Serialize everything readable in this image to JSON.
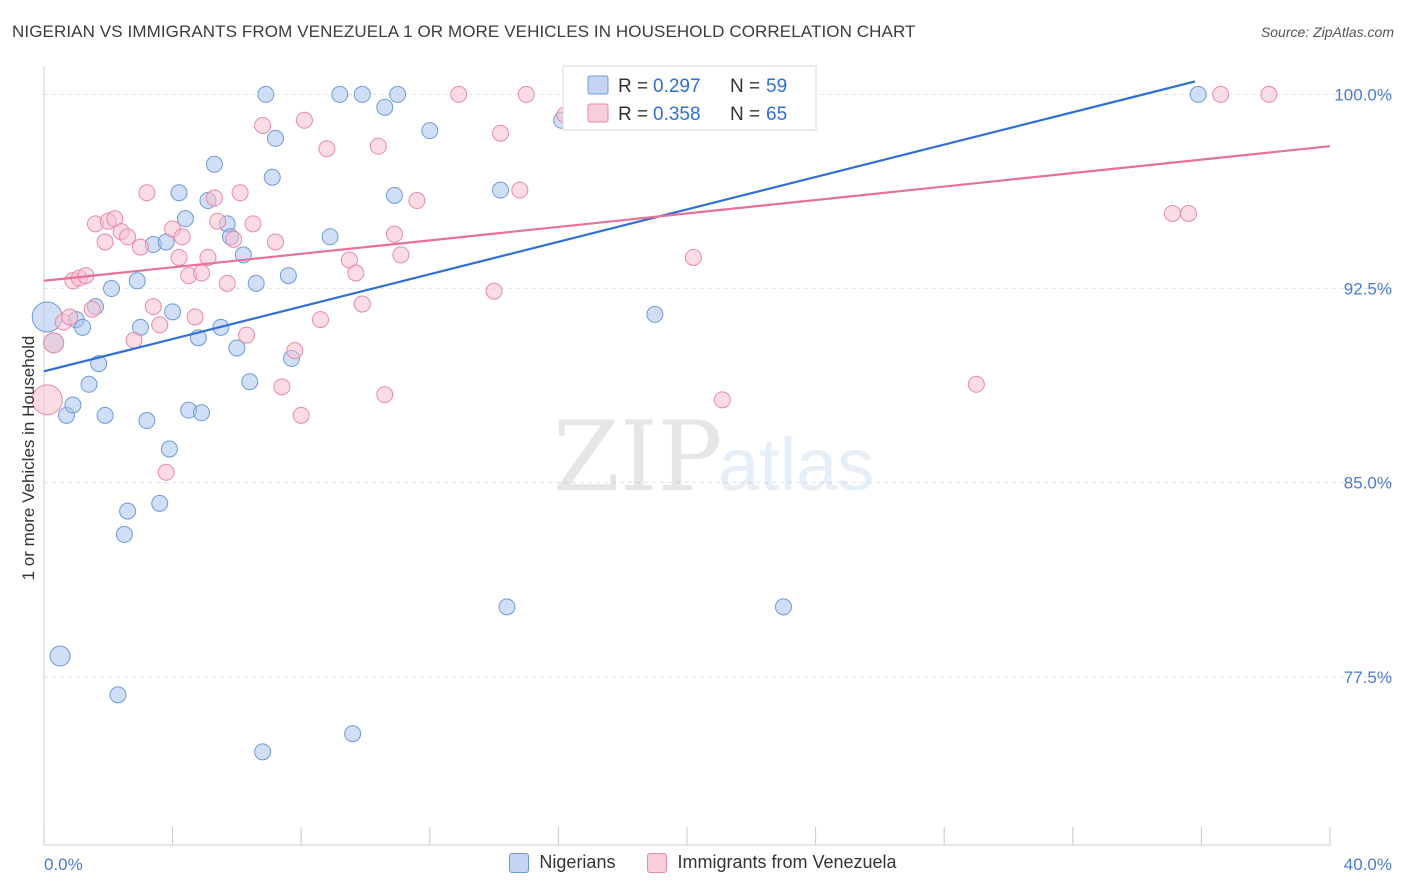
{
  "header": {
    "title": "NIGERIAN VS IMMIGRANTS FROM VENEZUELA 1 OR MORE VEHICLES IN HOUSEHOLD CORRELATION CHART",
    "source": "Source: ZipAtlas.com"
  },
  "watermark": {
    "zip": "ZIP",
    "atlas": "atlas"
  },
  "legend": {
    "series1": {
      "r_label": "R =",
      "r_value": "0.297",
      "n_label": "N =",
      "n_value": "59"
    },
    "series2": {
      "r_label": "R =",
      "r_value": "0.358",
      "n_label": "N =",
      "n_value": "65"
    }
  },
  "bottom_legend": {
    "series1": "Nigerians",
    "series2": "Immigrants from Venezuela"
  },
  "colors": {
    "blue_fill": "#aac4ee",
    "blue_stroke": "#6e9ad8",
    "blue_line": "#2f6fd6",
    "pink_fill": "#f7bfd0",
    "pink_stroke": "#e98aa8",
    "pink_line": "#e8709a",
    "tick_color": "#4a7bd0",
    "grid": "#e3e3e3"
  },
  "chart_data": {
    "type": "scatter",
    "title": "NIGERIAN VS IMMIGRANTS FROM VENEZUELA 1 OR MORE VEHICLES IN HOUSEHOLD CORRELATION CHART",
    "xlabel": "",
    "ylabel": "1 or more Vehicles in Household",
    "xlim": [
      0,
      40
    ],
    "ylim": [
      71.0,
      100.75
    ],
    "x_tick_labels": [
      "0.0%",
      "40.0%"
    ],
    "y_ticks": [
      100.0,
      92.5,
      85.0,
      77.5
    ],
    "y_tick_labels": [
      "100.0%",
      "92.5%",
      "85.0%",
      "77.5%"
    ],
    "grid": true,
    "series": [
      {
        "name": "Nigerians",
        "r": 0.297,
        "n": 59,
        "trend": {
          "x": [
            0,
            35.8
          ],
          "y": [
            89.3,
            100.5
          ]
        },
        "points": [
          {
            "x": 0.1,
            "y": 91.4,
            "s": 2
          },
          {
            "x": 0.3,
            "y": 90.4,
            "s": 1
          },
          {
            "x": 0.5,
            "y": 78.3,
            "s": 1
          },
          {
            "x": 0.7,
            "y": 87.6,
            "s": 0
          },
          {
            "x": 0.9,
            "y": 88.0,
            "s": 0
          },
          {
            "x": 1.0,
            "y": 91.3,
            "s": 0
          },
          {
            "x": 1.2,
            "y": 91.0,
            "s": 0
          },
          {
            "x": 1.4,
            "y": 88.8,
            "s": 0
          },
          {
            "x": 1.6,
            "y": 91.8,
            "s": 0
          },
          {
            "x": 1.7,
            "y": 89.6,
            "s": 0
          },
          {
            "x": 1.9,
            "y": 87.6,
            "s": 0
          },
          {
            "x": 2.1,
            "y": 92.5,
            "s": 0
          },
          {
            "x": 2.3,
            "y": 76.8,
            "s": 0
          },
          {
            "x": 2.5,
            "y": 83.0,
            "s": 0
          },
          {
            "x": 2.6,
            "y": 83.9,
            "s": 0
          },
          {
            "x": 2.9,
            "y": 92.8,
            "s": 0
          },
          {
            "x": 3.0,
            "y": 91.0,
            "s": 0
          },
          {
            "x": 3.2,
            "y": 87.4,
            "s": 0
          },
          {
            "x": 3.4,
            "y": 94.2,
            "s": 0
          },
          {
            "x": 3.6,
            "y": 84.2,
            "s": 0
          },
          {
            "x": 3.8,
            "y": 94.3,
            "s": 0
          },
          {
            "x": 3.9,
            "y": 86.3,
            "s": 0
          },
          {
            "x": 4.0,
            "y": 91.6,
            "s": 0
          },
          {
            "x": 4.2,
            "y": 96.2,
            "s": 0
          },
          {
            "x": 4.4,
            "y": 95.2,
            "s": 0
          },
          {
            "x": 4.5,
            "y": 87.8,
            "s": 0
          },
          {
            "x": 4.8,
            "y": 90.6,
            "s": 0
          },
          {
            "x": 4.9,
            "y": 87.7,
            "s": 0
          },
          {
            "x": 5.1,
            "y": 95.9,
            "s": 0
          },
          {
            "x": 5.3,
            "y": 97.3,
            "s": 0
          },
          {
            "x": 5.5,
            "y": 91.0,
            "s": 0
          },
          {
            "x": 5.7,
            "y": 95.0,
            "s": 0
          },
          {
            "x": 5.8,
            "y": 94.5,
            "s": 0
          },
          {
            "x": 6.0,
            "y": 90.2,
            "s": 0
          },
          {
            "x": 6.2,
            "y": 93.8,
            "s": 0
          },
          {
            "x": 6.4,
            "y": 88.9,
            "s": 0
          },
          {
            "x": 6.6,
            "y": 92.7,
            "s": 0
          },
          {
            "x": 6.8,
            "y": 74.6,
            "s": 0
          },
          {
            "x": 6.9,
            "y": 100.0,
            "s": 0
          },
          {
            "x": 7.1,
            "y": 96.8,
            "s": 0
          },
          {
            "x": 7.2,
            "y": 98.3,
            "s": 0
          },
          {
            "x": 7.6,
            "y": 93.0,
            "s": 0
          },
          {
            "x": 7.7,
            "y": 89.8,
            "s": 0
          },
          {
            "x": 8.9,
            "y": 94.5,
            "s": 0
          },
          {
            "x": 9.2,
            "y": 100.0,
            "s": 0
          },
          {
            "x": 9.6,
            "y": 75.3,
            "s": 0
          },
          {
            "x": 9.9,
            "y": 100.0,
            "s": 0
          },
          {
            "x": 10.6,
            "y": 99.5,
            "s": 0
          },
          {
            "x": 10.9,
            "y": 96.1,
            "s": 0
          },
          {
            "x": 11.0,
            "y": 100.0,
            "s": 0
          },
          {
            "x": 12.0,
            "y": 98.6,
            "s": 0
          },
          {
            "x": 14.2,
            "y": 96.3,
            "s": 0
          },
          {
            "x": 14.4,
            "y": 80.2,
            "s": 0
          },
          {
            "x": 16.1,
            "y": 99.0,
            "s": 0
          },
          {
            "x": 16.7,
            "y": 100.0,
            "s": 0
          },
          {
            "x": 18.6,
            "y": 100.0,
            "s": 0
          },
          {
            "x": 19.0,
            "y": 91.5,
            "s": 0
          },
          {
            "x": 23.0,
            "y": 80.2,
            "s": 0
          },
          {
            "x": 35.9,
            "y": 100.0,
            "s": 0
          }
        ]
      },
      {
        "name": "Immigrants from Venezuela",
        "r": 0.358,
        "n": 65,
        "trend": {
          "x": [
            0,
            40
          ],
          "y": [
            92.8,
            98.0
          ]
        },
        "points": [
          {
            "x": 0.1,
            "y": 88.2,
            "s": 2
          },
          {
            "x": 0.3,
            "y": 90.4,
            "s": 1
          },
          {
            "x": 0.6,
            "y": 91.2,
            "s": 0
          },
          {
            "x": 0.8,
            "y": 91.4,
            "s": 0
          },
          {
            "x": 0.9,
            "y": 92.8,
            "s": 0
          },
          {
            "x": 1.1,
            "y": 92.9,
            "s": 0
          },
          {
            "x": 1.3,
            "y": 93.0,
            "s": 0
          },
          {
            "x": 1.5,
            "y": 91.7,
            "s": 0
          },
          {
            "x": 1.6,
            "y": 95.0,
            "s": 0
          },
          {
            "x": 1.9,
            "y": 94.3,
            "s": 0
          },
          {
            "x": 2.0,
            "y": 95.1,
            "s": 0
          },
          {
            "x": 2.2,
            "y": 95.2,
            "s": 0
          },
          {
            "x": 2.4,
            "y": 94.7,
            "s": 0
          },
          {
            "x": 2.6,
            "y": 94.5,
            "s": 0
          },
          {
            "x": 2.8,
            "y": 90.5,
            "s": 0
          },
          {
            "x": 3.0,
            "y": 94.1,
            "s": 0
          },
          {
            "x": 3.2,
            "y": 96.2,
            "s": 0
          },
          {
            "x": 3.4,
            "y": 91.8,
            "s": 0
          },
          {
            "x": 3.6,
            "y": 91.1,
            "s": 0
          },
          {
            "x": 3.8,
            "y": 85.4,
            "s": 0
          },
          {
            "x": 4.0,
            "y": 94.8,
            "s": 0
          },
          {
            "x": 4.2,
            "y": 93.7,
            "s": 0
          },
          {
            "x": 4.3,
            "y": 94.5,
            "s": 0
          },
          {
            "x": 4.5,
            "y": 93.0,
            "s": 0
          },
          {
            "x": 4.7,
            "y": 91.4,
            "s": 0
          },
          {
            "x": 4.9,
            "y": 93.1,
            "s": 0
          },
          {
            "x": 5.1,
            "y": 93.7,
            "s": 0
          },
          {
            "x": 5.3,
            "y": 96.0,
            "s": 0
          },
          {
            "x": 5.4,
            "y": 95.1,
            "s": 0
          },
          {
            "x": 5.7,
            "y": 92.7,
            "s": 0
          },
          {
            "x": 5.9,
            "y": 94.4,
            "s": 0
          },
          {
            "x": 6.1,
            "y": 96.2,
            "s": 0
          },
          {
            "x": 6.3,
            "y": 90.7,
            "s": 0
          },
          {
            "x": 6.5,
            "y": 95.0,
            "s": 0
          },
          {
            "x": 6.8,
            "y": 98.8,
            "s": 0
          },
          {
            "x": 7.2,
            "y": 94.3,
            "s": 0
          },
          {
            "x": 7.4,
            "y": 88.7,
            "s": 0
          },
          {
            "x": 7.8,
            "y": 90.1,
            "s": 0
          },
          {
            "x": 8.0,
            "y": 87.6,
            "s": 0
          },
          {
            "x": 8.1,
            "y": 99.0,
            "s": 0
          },
          {
            "x": 8.6,
            "y": 91.3,
            "s": 0
          },
          {
            "x": 8.8,
            "y": 97.9,
            "s": 0
          },
          {
            "x": 9.5,
            "y": 93.6,
            "s": 0
          },
          {
            "x": 9.7,
            "y": 93.1,
            "s": 0
          },
          {
            "x": 9.9,
            "y": 91.9,
            "s": 0
          },
          {
            "x": 10.4,
            "y": 98.0,
            "s": 0
          },
          {
            "x": 10.6,
            "y": 88.4,
            "s": 0
          },
          {
            "x": 10.9,
            "y": 94.6,
            "s": 0
          },
          {
            "x": 11.1,
            "y": 93.8,
            "s": 0
          },
          {
            "x": 11.6,
            "y": 95.9,
            "s": 0
          },
          {
            "x": 12.9,
            "y": 100.0,
            "s": 0
          },
          {
            "x": 14.0,
            "y": 92.4,
            "s": 0
          },
          {
            "x": 14.2,
            "y": 98.5,
            "s": 0
          },
          {
            "x": 14.8,
            "y": 96.3,
            "s": 0
          },
          {
            "x": 15.0,
            "y": 100.0,
            "s": 0
          },
          {
            "x": 16.2,
            "y": 99.2,
            "s": 0
          },
          {
            "x": 20.2,
            "y": 93.7,
            "s": 0
          },
          {
            "x": 21.1,
            "y": 88.2,
            "s": 0
          },
          {
            "x": 21.6,
            "y": 100.0,
            "s": 0
          },
          {
            "x": 22.1,
            "y": 100.0,
            "s": 0
          },
          {
            "x": 29.0,
            "y": 88.8,
            "s": 0
          },
          {
            "x": 35.1,
            "y": 95.4,
            "s": 0
          },
          {
            "x": 35.6,
            "y": 95.4,
            "s": 0
          },
          {
            "x": 36.6,
            "y": 100.0,
            "s": 0
          },
          {
            "x": 38.1,
            "y": 100.0,
            "s": 0
          }
        ]
      }
    ]
  }
}
